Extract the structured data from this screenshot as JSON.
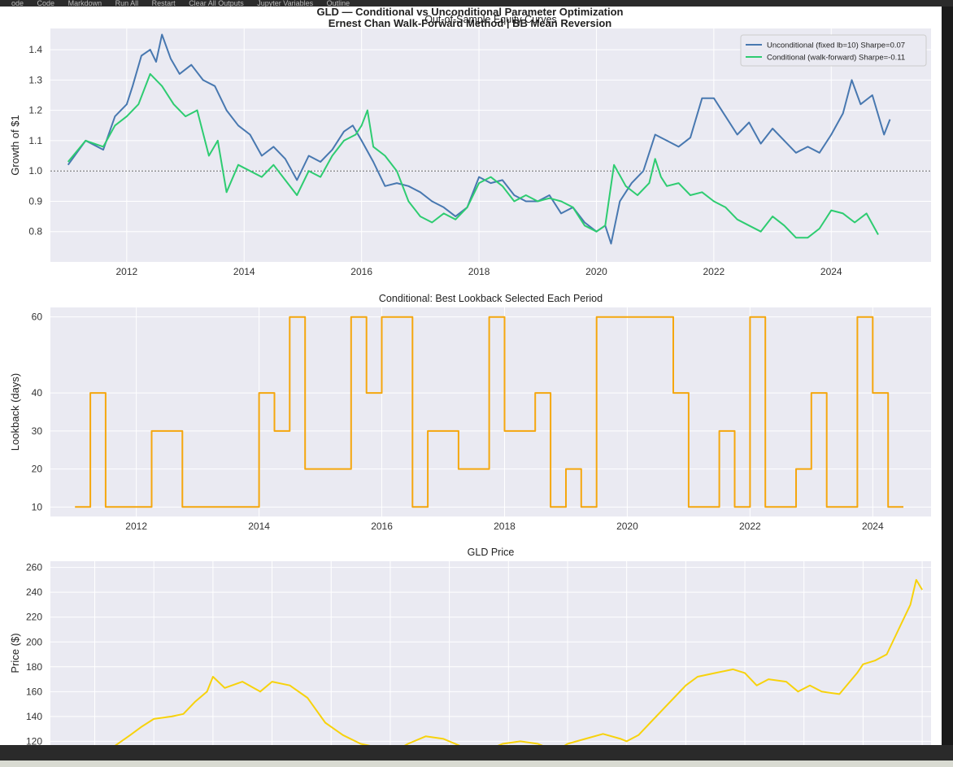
{
  "toolbar": {
    "items": [
      "ode",
      "Code",
      "Markdown",
      "Run All",
      "Restart",
      "Clear All Outputs",
      "Jupyter Variables",
      "Outline"
    ]
  },
  "figure": {
    "suptitle_line1": "GLD — Conditional vs Unconditional Parameter Optimization",
    "suptitle_line2": "Ernest Chan Walk-Forward Method  |  BB Mean Reversion"
  },
  "chart_data": [
    {
      "type": "line",
      "title": "Out-of-Sample Equity Curves",
      "xlabel": "",
      "ylabel": "Growth of $1",
      "xlim": [
        2010.7,
        2025.7
      ],
      "ylim": [
        0.7,
        1.47
      ],
      "xticks": [
        2012,
        2014,
        2016,
        2018,
        2020,
        2022,
        2024
      ],
      "yticks": [
        0.8,
        0.9,
        1.0,
        1.1,
        1.2,
        1.3,
        1.4
      ],
      "reference_line": 1.0,
      "grid": true,
      "legend": "top-right",
      "series": [
        {
          "name": "Unconditional (fixed lb=10)  Sharpe=0.07",
          "color": "#4878b0",
          "x": [
            2011.0,
            2011.3,
            2011.6,
            2011.8,
            2012.0,
            2012.1,
            2012.25,
            2012.4,
            2012.5,
            2012.6,
            2012.75,
            2012.9,
            2013.1,
            2013.3,
            2013.5,
            2013.7,
            2013.9,
            2014.1,
            2014.3,
            2014.5,
            2014.7,
            2014.9,
            2015.1,
            2015.3,
            2015.5,
            2015.7,
            2015.85,
            2016.0,
            2016.2,
            2016.4,
            2016.6,
            2016.8,
            2017.0,
            2017.2,
            2017.4,
            2017.6,
            2017.8,
            2018.0,
            2018.2,
            2018.4,
            2018.6,
            2018.8,
            2019.0,
            2019.2,
            2019.4,
            2019.6,
            2019.8,
            2020.0,
            2020.15,
            2020.25,
            2020.4,
            2020.6,
            2020.8,
            2021.0,
            2021.2,
            2021.4,
            2021.6,
            2021.8,
            2022.0,
            2022.2,
            2022.4,
            2022.6,
            2022.8,
            2023.0,
            2023.2,
            2023.4,
            2023.6,
            2023.8,
            2024.0,
            2024.2,
            2024.35,
            2024.5,
            2024.7,
            2024.9,
            2025.0
          ],
          "values": [
            1.02,
            1.1,
            1.07,
            1.18,
            1.22,
            1.28,
            1.38,
            1.4,
            1.36,
            1.45,
            1.37,
            1.32,
            1.35,
            1.3,
            1.28,
            1.2,
            1.15,
            1.12,
            1.05,
            1.08,
            1.04,
            0.97,
            1.05,
            1.03,
            1.07,
            1.13,
            1.15,
            1.1,
            1.03,
            0.95,
            0.96,
            0.95,
            0.93,
            0.9,
            0.88,
            0.85,
            0.88,
            0.98,
            0.96,
            0.97,
            0.92,
            0.9,
            0.9,
            0.92,
            0.86,
            0.88,
            0.83,
            0.8,
            0.82,
            0.76,
            0.9,
            0.96,
            1.0,
            1.12,
            1.1,
            1.08,
            1.11,
            1.24,
            1.24,
            1.18,
            1.12,
            1.16,
            1.09,
            1.14,
            1.1,
            1.06,
            1.08,
            1.06,
            1.12,
            1.19,
            1.3,
            1.22,
            1.25,
            1.12,
            1.17
          ]
        },
        {
          "name": "Conditional (walk-forward)  Sharpe=-0.11",
          "color": "#2ecc71",
          "x": [
            2011.0,
            2011.3,
            2011.6,
            2011.8,
            2012.0,
            2012.2,
            2012.4,
            2012.6,
            2012.8,
            2013.0,
            2013.2,
            2013.4,
            2013.55,
            2013.7,
            2013.9,
            2014.1,
            2014.3,
            2014.5,
            2014.7,
            2014.9,
            2015.1,
            2015.3,
            2015.5,
            2015.7,
            2015.9,
            2016.0,
            2016.1,
            2016.2,
            2016.4,
            2016.6,
            2016.8,
            2017.0,
            2017.2,
            2017.4,
            2017.6,
            2017.8,
            2018.0,
            2018.2,
            2018.4,
            2018.6,
            2018.8,
            2019.0,
            2019.2,
            2019.4,
            2019.6,
            2019.8,
            2020.0,
            2020.15,
            2020.3,
            2020.5,
            2020.7,
            2020.9,
            2021.0,
            2021.1,
            2021.2,
            2021.4,
            2021.6,
            2021.8,
            2022.0,
            2022.2,
            2022.4,
            2022.6,
            2022.8,
            2023.0,
            2023.2,
            2023.4,
            2023.6,
            2023.8,
            2024.0,
            2024.2,
            2024.4,
            2024.6,
            2024.8
          ],
          "values": [
            1.03,
            1.1,
            1.08,
            1.15,
            1.18,
            1.22,
            1.32,
            1.28,
            1.22,
            1.18,
            1.2,
            1.05,
            1.1,
            0.93,
            1.02,
            1.0,
            0.98,
            1.02,
            0.97,
            0.92,
            1.0,
            0.98,
            1.05,
            1.1,
            1.12,
            1.15,
            1.2,
            1.08,
            1.05,
            1.0,
            0.9,
            0.85,
            0.83,
            0.86,
            0.84,
            0.88,
            0.96,
            0.98,
            0.95,
            0.9,
            0.92,
            0.9,
            0.91,
            0.9,
            0.88,
            0.82,
            0.8,
            0.82,
            1.02,
            0.95,
            0.92,
            0.96,
            1.04,
            0.98,
            0.95,
            0.96,
            0.92,
            0.93,
            0.9,
            0.88,
            0.84,
            0.82,
            0.8,
            0.85,
            0.82,
            0.78,
            0.78,
            0.81,
            0.87,
            0.86,
            0.83,
            0.86,
            0.79
          ]
        }
      ]
    },
    {
      "type": "line",
      "title": "Conditional: Best Lookback Selected Each Period",
      "xlabel": "",
      "ylabel": "Lookback (days)",
      "xlim": [
        2010.6,
        2024.95
      ],
      "ylim": [
        7.5,
        62.5
      ],
      "xticks": [
        2012,
        2014,
        2016,
        2018,
        2020,
        2022,
        2024
      ],
      "yticks": [
        10,
        20,
        30,
        40,
        60
      ],
      "grid": true,
      "series": [
        {
          "name": "",
          "color": "#f5a70e",
          "step": true,
          "x": [
            2011.0,
            2011.25,
            2011.5,
            2012.25,
            2012.75,
            2014.0,
            2014.25,
            2014.5,
            2014.75,
            2015.5,
            2015.75,
            2016.0,
            2016.5,
            2016.75,
            2017.25,
            2017.75,
            2018.0,
            2018.5,
            2018.75,
            2019.0,
            2019.25,
            2019.5,
            2019.75,
            2020.0,
            2020.25,
            2020.5,
            2020.75,
            2021.0,
            2021.25,
            2021.5,
            2021.75,
            2022.0,
            2022.25,
            2022.5,
            2022.75,
            2023.0,
            2023.25,
            2023.5,
            2023.75,
            2024.0,
            2024.25,
            2024.5
          ],
          "values": [
            10,
            40,
            10,
            30,
            10,
            40,
            30,
            60,
            20,
            60,
            40,
            60,
            10,
            30,
            20,
            60,
            30,
            40,
            10,
            20,
            10,
            60,
            60,
            60,
            60,
            60,
            40,
            10,
            10,
            30,
            10,
            60,
            10,
            10,
            20,
            40,
            10,
            10,
            60,
            40,
            10,
            10
          ]
        }
      ]
    },
    {
      "type": "line",
      "title": "GLD Price",
      "xlabel": "",
      "ylabel": "Price ($)",
      "xlim": [
        2010.25,
        2025.15
      ],
      "ylim": [
        117,
        265
      ],
      "yticks": [
        120,
        140,
        160,
        180,
        200,
        220,
        240,
        260
      ],
      "grid": true,
      "series": [
        {
          "name": "",
          "color": "#f7d20c",
          "x": [
            2011.0,
            2011.3,
            2011.6,
            2011.8,
            2012.0,
            2012.3,
            2012.5,
            2012.7,
            2012.9,
            2013.0,
            2013.2,
            2013.5,
            2013.8,
            2014.0,
            2014.3,
            2014.6,
            2014.9,
            2015.2,
            2015.5,
            2015.8,
            2016.0,
            2016.3,
            2016.6,
            2016.9,
            2017.1,
            2017.3,
            2017.6,
            2017.9,
            2018.2,
            2018.5,
            2018.8,
            2019.0,
            2019.3,
            2019.6,
            2019.9,
            2020.0,
            2020.2,
            2020.4,
            2020.6,
            2020.8,
            2021.0,
            2021.2,
            2021.5,
            2021.8,
            2022.0,
            2022.2,
            2022.4,
            2022.7,
            2022.9,
            2023.1,
            2023.3,
            2023.6,
            2023.9,
            2024.0,
            2024.2,
            2024.4,
            2024.6,
            2024.8,
            2024.9,
            2025.0
          ],
          "values": [
            108,
            115,
            125,
            132,
            138,
            140,
            142,
            152,
            160,
            172,
            163,
            168,
            160,
            168,
            165,
            155,
            135,
            125,
            118,
            115,
            110,
            118,
            124,
            122,
            118,
            114,
            112,
            118,
            120,
            118,
            112,
            118,
            122,
            126,
            122,
            120,
            125,
            135,
            145,
            155,
            165,
            172,
            175,
            178,
            175,
            165,
            170,
            168,
            160,
            165,
            160,
            158,
            175,
            182,
            185,
            190,
            210,
            230,
            250,
            242
          ]
        }
      ]
    }
  ]
}
